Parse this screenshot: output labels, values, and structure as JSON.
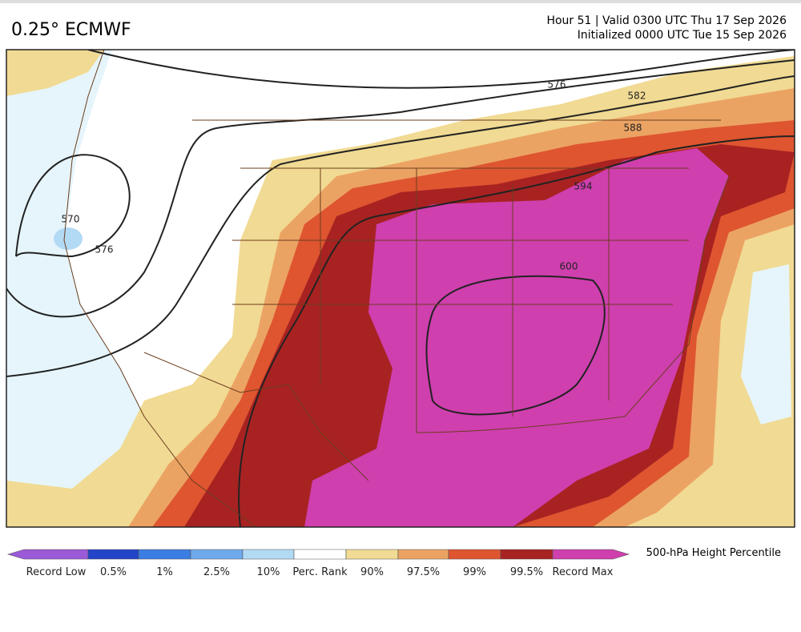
{
  "header": {
    "title": "0.25° ECMWF",
    "valid": "Hour 51 | Valid 0300 UTC Thu 17 Sep 2026",
    "init": "Initialized 0000 UTC Tue 15 Sep 2026"
  },
  "map": {
    "contour_labels": [
      "570",
      "576",
      "576",
      "582",
      "588",
      "594",
      "600"
    ]
  },
  "colorbar": {
    "title": "500-hPa Height Percentile",
    "labels": [
      "Record Low",
      "0.5%",
      "1%",
      "2.5%",
      "10%",
      "Perc. Rank",
      "90%",
      "97.5%",
      "99%",
      "99.5%",
      "Record Max"
    ],
    "colors": [
      "#9b5ad8",
      "#2244c8",
      "#3b7de2",
      "#6fa9ec",
      "#b3daf5",
      "#ffffff",
      "#f1da93",
      "#eba363",
      "#de5530",
      "#a82222",
      "#cf3fae"
    ]
  }
}
